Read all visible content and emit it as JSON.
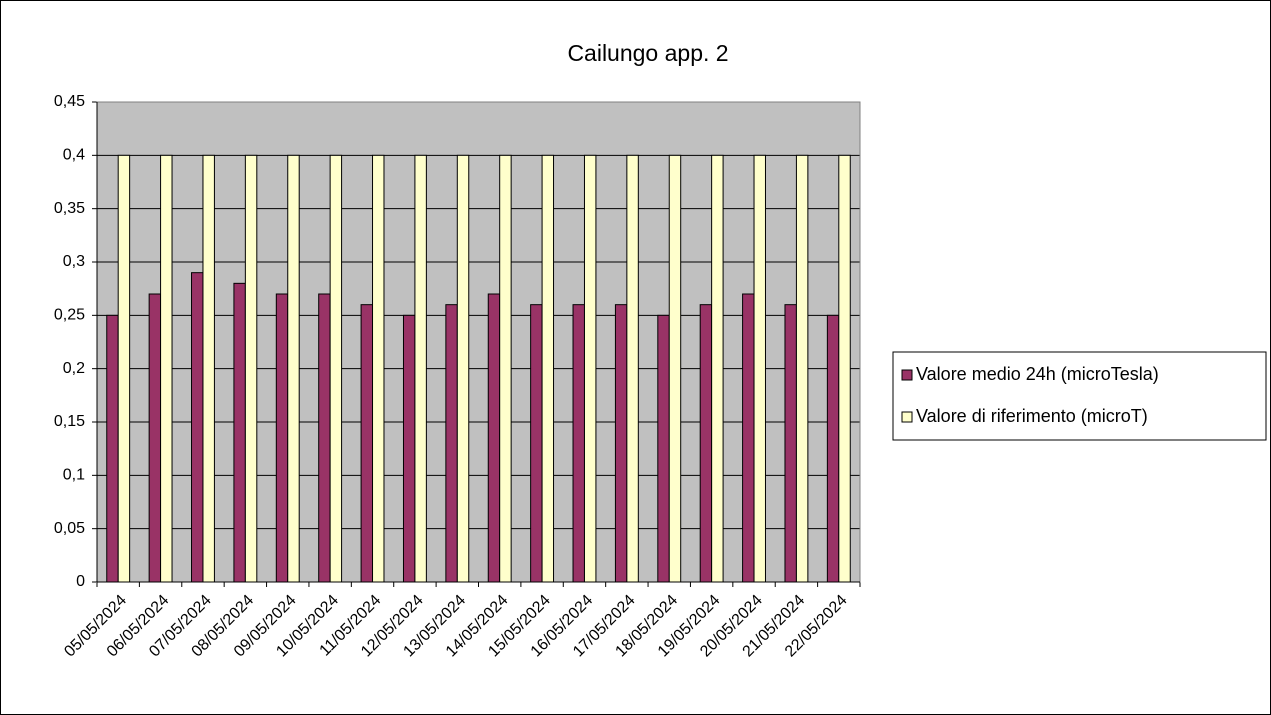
{
  "chart_data": {
    "type": "bar",
    "title": "Cailungo app. 2",
    "categories": [
      "05/05/2024",
      "06/05/2024",
      "07/05/2024",
      "08/05/2024",
      "09/05/2024",
      "10/05/2024",
      "11/05/2024",
      "12/05/2024",
      "13/05/2024",
      "14/05/2024",
      "15/05/2024",
      "16/05/2024",
      "17/05/2024",
      "18/05/2024",
      "19/05/2024",
      "20/05/2024",
      "21/05/2024",
      "22/05/2024"
    ],
    "series": [
      {
        "name": "Valore medio 24h (microTesla)",
        "color": "#993366",
        "values": [
          0.25,
          0.27,
          0.29,
          0.28,
          0.27,
          0.27,
          0.26,
          0.25,
          0.26,
          0.27,
          0.26,
          0.26,
          0.26,
          0.25,
          0.26,
          0.27,
          0.26,
          0.25
        ]
      },
      {
        "name": "Valore di riferimento (microT)",
        "color": "#ffffcc",
        "values": [
          0.4,
          0.4,
          0.4,
          0.4,
          0.4,
          0.4,
          0.4,
          0.4,
          0.4,
          0.4,
          0.4,
          0.4,
          0.4,
          0.4,
          0.4,
          0.4,
          0.4,
          0.4
        ]
      }
    ],
    "ylim": [
      0,
      0.45
    ],
    "yticks": [
      0,
      {
        "value": 0.05,
        "label": "0,05"
      },
      {
        "value": 0.1,
        "label": "0,1"
      },
      {
        "value": 0.15,
        "label": "0,15"
      },
      {
        "value": 0.2,
        "label": "0,2"
      },
      {
        "value": 0.25,
        "label": "0,25"
      },
      {
        "value": 0.3,
        "label": "0,3"
      },
      {
        "value": 0.35,
        "label": "0,35"
      },
      {
        "value": 0.4,
        "label": "0,4"
      },
      {
        "value": 0.45,
        "label": "0,45"
      }
    ],
    "grid": true,
    "legend": "right",
    "plot_background": "#c0c0c0"
  }
}
